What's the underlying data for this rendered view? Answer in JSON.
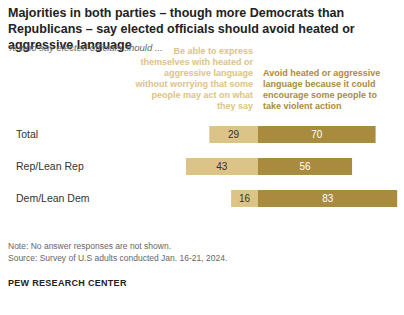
{
  "chart_data": {
    "type": "bar",
    "title": "Majorities in both parties – though more Democrats than Republicans – say elected officials should avoid heated or aggressive language",
    "subtitle": "% who say elected officials should ...",
    "categories": [
      "Total",
      "Rep/Lean Rep",
      "Dem/Lean Dem"
    ],
    "series": [
      {
        "name": "Be able to express themselves with heated or aggressive language without worrying that some people may act on what they say",
        "color": "#dcc387",
        "values": [
          29,
          43,
          16
        ]
      },
      {
        "name": "Avoid heated or aggressive language because it could encourage some people to take violent action",
        "color": "#a98b3f",
        "values": [
          70,
          56,
          83
        ]
      }
    ],
    "orientation": "horizontal",
    "stacked": true,
    "data_labels": true,
    "tick_labels": "y",
    "note": "Note: No answer responses are not shown.",
    "source": "Source: Survey of U.S adults conducted Jan. 16-21, 2024.",
    "credit": "PEW RESEARCH CENTER"
  }
}
